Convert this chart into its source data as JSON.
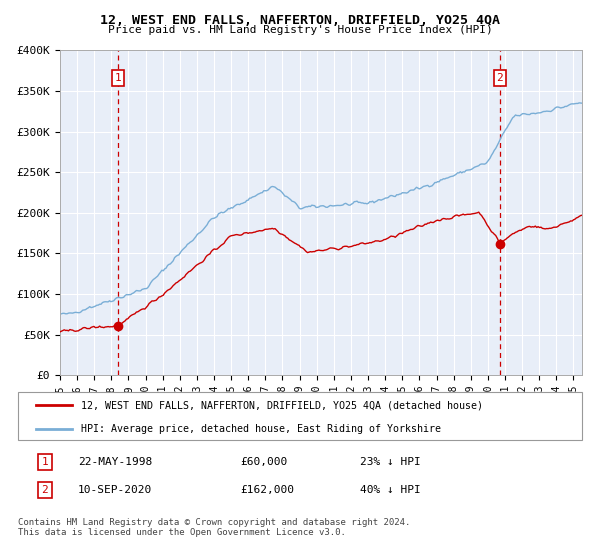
{
  "title": "12, WEST END FALLS, NAFFERTON, DRIFFIELD, YO25 4QA",
  "subtitle": "Price paid vs. HM Land Registry's House Price Index (HPI)",
  "ylim": [
    0,
    400000
  ],
  "xlim_start": 1995.0,
  "xlim_end": 2025.5,
  "yticks": [
    0,
    50000,
    100000,
    150000,
    200000,
    250000,
    300000,
    350000,
    400000
  ],
  "ytick_labels": [
    "£0",
    "£50K",
    "£100K",
    "£150K",
    "£200K",
    "£250K",
    "£300K",
    "£350K",
    "£400K"
  ],
  "marker1_x": 1998.39,
  "marker1_y": 60000,
  "marker1_label": "1",
  "marker1_text": "22-MAY-1998",
  "marker1_price": "£60,000",
  "marker1_hpi": "23% ↓ HPI",
  "marker2_x": 2020.7,
  "marker2_y": 162000,
  "marker2_label": "2",
  "marker2_text": "10-SEP-2020",
  "marker2_price": "£162,000",
  "marker2_hpi": "40% ↓ HPI",
  "line_color_red": "#cc0000",
  "line_color_blue": "#7aaed6",
  "legend_label_red": "12, WEST END FALLS, NAFFERTON, DRIFFIELD, YO25 4QA (detached house)",
  "legend_label_blue": "HPI: Average price, detached house, East Riding of Yorkshire",
  "footer": "Contains HM Land Registry data © Crown copyright and database right 2024.\nThis data is licensed under the Open Government Licence v3.0.",
  "bg_chart": "#e8eef8",
  "bg_white": "#ffffff",
  "grid_color": "#ffffff",
  "xtick_years": [
    1995,
    1996,
    1997,
    1998,
    1999,
    2000,
    2001,
    2002,
    2003,
    2004,
    2005,
    2006,
    2007,
    2008,
    2009,
    2010,
    2011,
    2012,
    2013,
    2014,
    2015,
    2016,
    2017,
    2018,
    2019,
    2020,
    2021,
    2022,
    2023,
    2024,
    2025
  ]
}
